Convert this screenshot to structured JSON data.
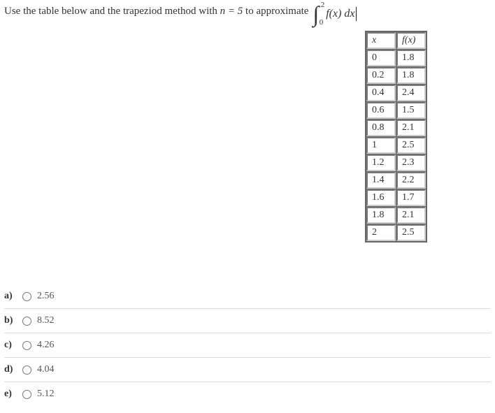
{
  "question": {
    "prefix": "Use the table below and the trapeziod method with ",
    "n_expr": "n = 5",
    "mid": " to approximate ",
    "integral": {
      "lower": "0",
      "upper": "2",
      "integrand": "f(x) dx"
    }
  },
  "table": {
    "type": "table",
    "header_x": "x",
    "header_fx": "f(x)",
    "rows": [
      {
        "x": "0",
        "fx": "1.8"
      },
      {
        "x": "0.2",
        "fx": "1.8"
      },
      {
        "x": "0.4",
        "fx": "2.4"
      },
      {
        "x": "0.6",
        "fx": "1.5"
      },
      {
        "x": "0.8",
        "fx": "2.1"
      },
      {
        "x": "1",
        "fx": "2.5"
      },
      {
        "x": "1.2",
        "fx": "2.3"
      },
      {
        "x": "1.4",
        "fx": "2.2"
      },
      {
        "x": "1.6",
        "fx": "1.7"
      },
      {
        "x": "1.8",
        "fx": "2.1"
      },
      {
        "x": "2",
        "fx": "2.5"
      }
    ],
    "border_color": "#666666",
    "cell_bg": "#ffffff",
    "font_size": 14
  },
  "choices": [
    {
      "label": "a)",
      "value": "2.56"
    },
    {
      "label": "b)",
      "value": "8.52"
    },
    {
      "label": "c)",
      "value": "4.26"
    },
    {
      "label": "d)",
      "value": "4.04"
    },
    {
      "label": "e)",
      "value": "5.12"
    }
  ],
  "colors": {
    "text": "#333333",
    "divider": "#dcdcdc",
    "background": "#ffffff"
  }
}
